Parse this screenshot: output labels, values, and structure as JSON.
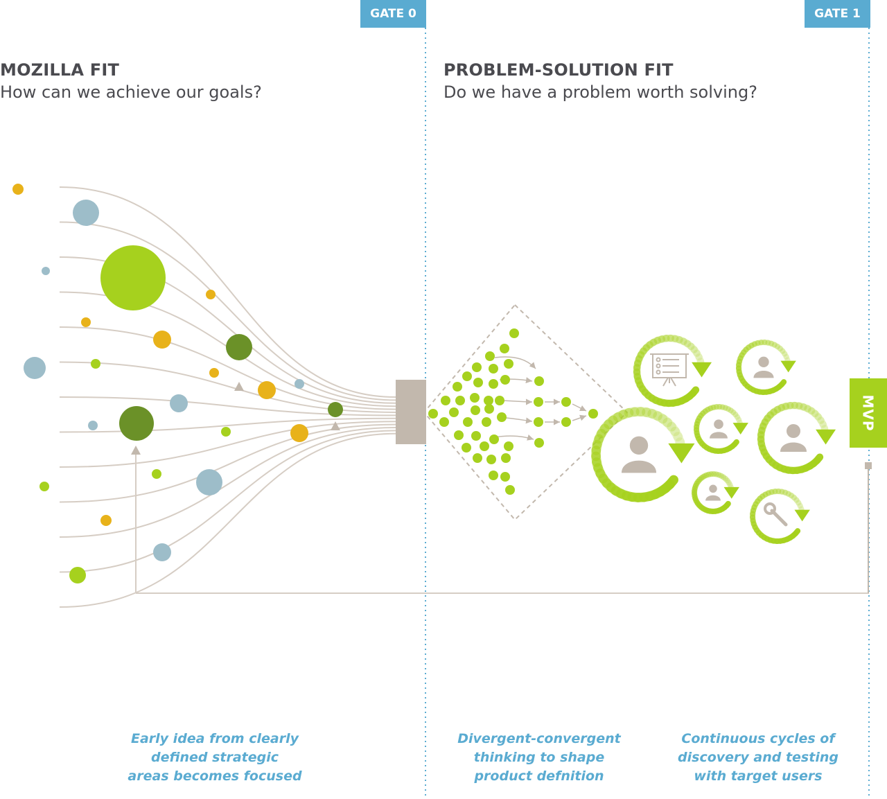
{
  "gates": [
    {
      "label": "GATE 0"
    },
    {
      "label": "GATE 1"
    }
  ],
  "sections": {
    "mozilla_fit": {
      "title": "MOZILLA FIT",
      "subtitle": "How can we achieve our goals?",
      "caption": [
        "Early idea from clearly",
        "defined strategic",
        "areas becomes focused"
      ]
    },
    "problem_solution_fit": {
      "title": "PROBLEM-SOLUTION FIT",
      "subtitle": "Do we have a problem worth solving?",
      "caption_divergent": [
        "Divergent-convergent",
        "thinking to shape",
        "product defnition"
      ],
      "caption_cycles": [
        "Continuous cycles of",
        "discovery and testing",
        "with target users"
      ]
    }
  },
  "mvp_label": "MVP",
  "colors": {
    "gate_blue": "#5aabd1",
    "lime": "#a6d11e",
    "dark_green": "#6b9128",
    "orange": "#e8b21a",
    "blue_grey": "#9dbdc9",
    "taupe": "#c2b8ad",
    "text_dark": "#4a4a4f"
  },
  "icons": [
    "presentation-board-icon",
    "user-icon",
    "wrench-icon",
    "arrow-icon"
  ]
}
